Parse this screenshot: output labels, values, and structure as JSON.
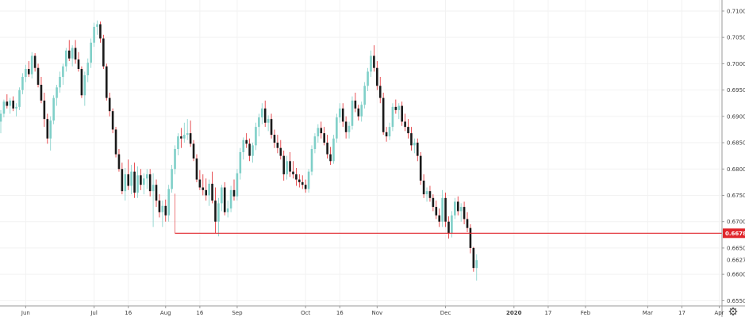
{
  "chart_data": {
    "type": "candlestick",
    "y_axis": {
      "labels": [
        "0.71000",
        "0.70500",
        "0.70000",
        "0.69500",
        "0.69000",
        "0.68500",
        "0.68000",
        "0.67500",
        "0.67000",
        "0.66500",
        "0.66000",
        "0.65500"
      ],
      "range": [
        0.654,
        0.7118
      ],
      "position": "right"
    },
    "x_axis": {
      "labels": [
        {
          "text": "Jun",
          "bar": 8,
          "year": false
        },
        {
          "text": "Jul",
          "bar": 30,
          "year": false
        },
        {
          "text": "16",
          "bar": 41,
          "year": false
        },
        {
          "text": "Aug",
          "bar": 53,
          "year": false
        },
        {
          "text": "16",
          "bar": 64,
          "year": false
        },
        {
          "text": "Sep",
          "bar": 76,
          "year": false
        },
        {
          "text": "Oct",
          "bar": 98,
          "year": false
        },
        {
          "text": "16",
          "bar": 109,
          "year": false
        },
        {
          "text": "Nov",
          "bar": 121,
          "year": false
        },
        {
          "text": "Dec",
          "bar": 143,
          "year": false
        },
        {
          "text": "2020",
          "bar": 165,
          "year": true
        },
        {
          "text": "17",
          "bar": 176,
          "year": false
        },
        {
          "text": "Feb",
          "bar": 188,
          "year": false
        },
        {
          "text": "Mar",
          "bar": 208,
          "year": false
        },
        {
          "text": "17",
          "bar": 219,
          "year": false
        },
        {
          "text": "Apr",
          "bar": 231,
          "year": false
        }
      ]
    },
    "horizontal_line": {
      "value": 0.6678,
      "start_bar": 56,
      "color": "#e0262b"
    },
    "current_price": {
      "value": 0.6627,
      "color": "#4a4a4a"
    },
    "price_tag": {
      "label": "0.66780",
      "color": "#e0262b"
    },
    "colors": {
      "up_candle": "#7fcfc8",
      "down_candle": "#1a1a1a",
      "down_wick": "#e0262b",
      "up_wick": "#7fcfc8",
      "grid": "#f2f2f2",
      "axis_line": "#999999",
      "settings_icon": "#444444"
    },
    "candles": [
      [
        0.689,
        0.6912,
        0.6868,
        0.6905
      ],
      [
        0.6905,
        0.6932,
        0.6898,
        0.6928
      ],
      [
        0.6928,
        0.6942,
        0.6915,
        0.692
      ],
      [
        0.692,
        0.6935,
        0.6905,
        0.693
      ],
      [
        0.693,
        0.6938,
        0.691,
        0.6915
      ],
      [
        0.6915,
        0.6925,
        0.69,
        0.6918
      ],
      [
        0.6918,
        0.6955,
        0.6912,
        0.695
      ],
      [
        0.695,
        0.6982,
        0.6942,
        0.6975
      ],
      [
        0.6975,
        0.6998,
        0.6965,
        0.699
      ],
      [
        0.699,
        0.7005,
        0.6975,
        0.698
      ],
      [
        0.698,
        0.7022,
        0.6972,
        0.7015
      ],
      [
        0.7015,
        0.702,
        0.6985,
        0.6992
      ],
      [
        0.6992,
        0.7,
        0.6955,
        0.696
      ],
      [
        0.696,
        0.6975,
        0.6925,
        0.693
      ],
      [
        0.693,
        0.6945,
        0.688,
        0.6895
      ],
      [
        0.6895,
        0.6905,
        0.6848,
        0.6858
      ],
      [
        0.6858,
        0.69,
        0.6835,
        0.6892
      ],
      [
        0.6892,
        0.694,
        0.6885,
        0.6935
      ],
      [
        0.6935,
        0.696,
        0.692,
        0.6955
      ],
      [
        0.6955,
        0.6985,
        0.6945,
        0.6975
      ],
      [
        0.6975,
        0.7,
        0.696,
        0.6995
      ],
      [
        0.6995,
        0.703,
        0.6985,
        0.7025
      ],
      [
        0.7025,
        0.7045,
        0.7005,
        0.701
      ],
      [
        0.701,
        0.7035,
        0.6995,
        0.703
      ],
      [
        0.703,
        0.7045,
        0.7,
        0.7008
      ],
      [
        0.7008,
        0.7022,
        0.6985,
        0.699
      ],
      [
        0.699,
        0.6995,
        0.6935,
        0.694
      ],
      [
        0.694,
        0.6985,
        0.692,
        0.6978
      ],
      [
        0.6978,
        0.701,
        0.6965,
        0.7002
      ],
      [
        0.7002,
        0.7048,
        0.6992,
        0.704
      ],
      [
        0.704,
        0.7078,
        0.7032,
        0.707
      ],
      [
        0.707,
        0.7082,
        0.7055,
        0.7075
      ],
      [
        0.7075,
        0.708,
        0.704,
        0.7048
      ],
      [
        0.7048,
        0.7055,
        0.699,
        0.6995
      ],
      [
        0.6995,
        0.7,
        0.693,
        0.6935
      ],
      [
        0.6935,
        0.6945,
        0.69,
        0.691
      ],
      [
        0.691,
        0.6915,
        0.6868,
        0.6875
      ],
      [
        0.6875,
        0.688,
        0.6822,
        0.6828
      ],
      [
        0.6828,
        0.6838,
        0.6795,
        0.68
      ],
      [
        0.68,
        0.6812,
        0.6752,
        0.6758
      ],
      [
        0.6758,
        0.6802,
        0.674,
        0.679
      ],
      [
        0.679,
        0.6818,
        0.676,
        0.6768
      ],
      [
        0.6768,
        0.6808,
        0.6752,
        0.6795
      ],
      [
        0.6795,
        0.6812,
        0.6745,
        0.6755
      ],
      [
        0.6755,
        0.6805,
        0.6745,
        0.6788
      ],
      [
        0.6788,
        0.68,
        0.676,
        0.677
      ],
      [
        0.677,
        0.6792,
        0.6752,
        0.6782
      ],
      [
        0.6782,
        0.68,
        0.6762,
        0.679
      ],
      [
        0.679,
        0.68,
        0.6748,
        0.6758
      ],
      [
        0.6758,
        0.6792,
        0.669,
        0.677
      ],
      [
        0.677,
        0.678,
        0.6728,
        0.674
      ],
      [
        0.674,
        0.6752,
        0.6708,
        0.6718
      ],
      [
        0.6718,
        0.674,
        0.669,
        0.673
      ],
      [
        0.673,
        0.6742,
        0.67,
        0.6712
      ],
      [
        0.6712,
        0.677,
        0.67,
        0.6762
      ],
      [
        0.6762,
        0.6808,
        0.6755,
        0.68
      ],
      [
        0.68,
        0.6845,
        0.679,
        0.6838
      ],
      [
        0.6838,
        0.6868,
        0.6826,
        0.6862
      ],
      [
        0.6862,
        0.6878,
        0.684,
        0.6858
      ],
      [
        0.6858,
        0.6888,
        0.685,
        0.6865
      ],
      [
        0.6865,
        0.6895,
        0.6855,
        0.6868
      ],
      [
        0.6868,
        0.6892,
        0.6842,
        0.6848
      ],
      [
        0.6848,
        0.6855,
        0.6815,
        0.682
      ],
      [
        0.682,
        0.6828,
        0.6775,
        0.678
      ],
      [
        0.678,
        0.6798,
        0.676,
        0.6765
      ],
      [
        0.6765,
        0.679,
        0.675,
        0.676
      ],
      [
        0.676,
        0.6782,
        0.674,
        0.675
      ],
      [
        0.675,
        0.678,
        0.673,
        0.6772
      ],
      [
        0.6772,
        0.6795,
        0.6735,
        0.674
      ],
      [
        0.674,
        0.6765,
        0.6678,
        0.67
      ],
      [
        0.67,
        0.6745,
        0.6672,
        0.6735
      ],
      [
        0.6735,
        0.677,
        0.672,
        0.6765
      ],
      [
        0.6765,
        0.6775,
        0.6712,
        0.6718
      ],
      [
        0.6718,
        0.674,
        0.6708,
        0.6725
      ],
      [
        0.6725,
        0.6768,
        0.6718,
        0.676
      ],
      [
        0.676,
        0.678,
        0.674,
        0.6748
      ],
      [
        0.6748,
        0.68,
        0.674,
        0.6792
      ],
      [
        0.6792,
        0.684,
        0.678,
        0.6832
      ],
      [
        0.6832,
        0.686,
        0.6818,
        0.6855
      ],
      [
        0.6855,
        0.6868,
        0.684,
        0.6848
      ],
      [
        0.6848,
        0.6858,
        0.6815,
        0.6825
      ],
      [
        0.6825,
        0.685,
        0.6812,
        0.6845
      ],
      [
        0.6845,
        0.6888,
        0.6836,
        0.688
      ],
      [
        0.688,
        0.6905,
        0.6862,
        0.6898
      ],
      [
        0.6898,
        0.6925,
        0.6885,
        0.6915
      ],
      [
        0.6915,
        0.693,
        0.688,
        0.6888
      ],
      [
        0.6888,
        0.6902,
        0.6872,
        0.6895
      ],
      [
        0.6895,
        0.6905,
        0.6858,
        0.6865
      ],
      [
        0.6865,
        0.6875,
        0.684,
        0.685
      ],
      [
        0.685,
        0.6865,
        0.683,
        0.684
      ],
      [
        0.684,
        0.6855,
        0.6818,
        0.6825
      ],
      [
        0.6825,
        0.6835,
        0.6778,
        0.679
      ],
      [
        0.679,
        0.6825,
        0.678,
        0.6815
      ],
      [
        0.6815,
        0.6832,
        0.6785,
        0.6795
      ],
      [
        0.6795,
        0.6815,
        0.6782,
        0.679
      ],
      [
        0.679,
        0.6802,
        0.6768,
        0.678
      ],
      [
        0.678,
        0.679,
        0.6765,
        0.6775
      ],
      [
        0.6775,
        0.6788,
        0.6762,
        0.677
      ],
      [
        0.677,
        0.678,
        0.6755,
        0.6762
      ],
      [
        0.6762,
        0.68,
        0.6755,
        0.6795
      ],
      [
        0.6795,
        0.6845,
        0.6788,
        0.6838
      ],
      [
        0.6838,
        0.6868,
        0.683,
        0.6862
      ],
      [
        0.6862,
        0.6885,
        0.685,
        0.6878
      ],
      [
        0.6878,
        0.689,
        0.6858,
        0.6868
      ],
      [
        0.6868,
        0.688,
        0.6845,
        0.685
      ],
      [
        0.685,
        0.6865,
        0.682,
        0.6828
      ],
      [
        0.6828,
        0.6842,
        0.6808,
        0.6815
      ],
      [
        0.6815,
        0.6865,
        0.681,
        0.6858
      ],
      [
        0.6858,
        0.6905,
        0.685,
        0.6898
      ],
      [
        0.6898,
        0.6925,
        0.6888,
        0.6915
      ],
      [
        0.6915,
        0.6925,
        0.688,
        0.689
      ],
      [
        0.689,
        0.69,
        0.6858,
        0.687
      ],
      [
        0.687,
        0.689,
        0.6858,
        0.6882
      ],
      [
        0.6882,
        0.6938,
        0.6875,
        0.693
      ],
      [
        0.693,
        0.6945,
        0.6908,
        0.6915
      ],
      [
        0.6915,
        0.6922,
        0.6892,
        0.69
      ],
      [
        0.69,
        0.6928,
        0.689,
        0.6922
      ],
      [
        0.6922,
        0.6965,
        0.6915,
        0.6958
      ],
      [
        0.6958,
        0.6992,
        0.6948,
        0.6985
      ],
      [
        0.6985,
        0.7025,
        0.6975,
        0.7015
      ],
      [
        0.7015,
        0.7035,
        0.6985,
        0.6992
      ],
      [
        0.6992,
        0.7005,
        0.695,
        0.6958
      ],
      [
        0.6958,
        0.6975,
        0.6925,
        0.6935
      ],
      [
        0.6935,
        0.6945,
        0.6865,
        0.687
      ],
      [
        0.687,
        0.688,
        0.6852,
        0.6862
      ],
      [
        0.6862,
        0.6888,
        0.6855,
        0.688
      ],
      [
        0.688,
        0.6925,
        0.6872,
        0.6918
      ],
      [
        0.6918,
        0.6932,
        0.6905,
        0.6912
      ],
      [
        0.6912,
        0.6925,
        0.6895,
        0.692
      ],
      [
        0.692,
        0.6928,
        0.6882,
        0.689
      ],
      [
        0.689,
        0.6905,
        0.6872,
        0.688
      ],
      [
        0.688,
        0.6895,
        0.6858,
        0.6868
      ],
      [
        0.6868,
        0.688,
        0.6835,
        0.6845
      ],
      [
        0.6845,
        0.6858,
        0.683,
        0.685
      ],
      [
        0.685,
        0.6858,
        0.6815,
        0.6825
      ],
      [
        0.6825,
        0.6832,
        0.677,
        0.6778
      ],
      [
        0.6778,
        0.679,
        0.6745,
        0.6752
      ],
      [
        0.6752,
        0.6765,
        0.6738,
        0.6758
      ],
      [
        0.6758,
        0.6768,
        0.6738,
        0.6745
      ],
      [
        0.6745,
        0.6752,
        0.672,
        0.6728
      ],
      [
        0.6728,
        0.674,
        0.6705,
        0.6712
      ],
      [
        0.6712,
        0.6725,
        0.669,
        0.67
      ],
      [
        0.67,
        0.676,
        0.669,
        0.6745
      ],
      [
        0.6745,
        0.6755,
        0.669,
        0.67
      ],
      [
        0.67,
        0.671,
        0.6668,
        0.6678
      ],
      [
        0.6678,
        0.672,
        0.667,
        0.6712
      ],
      [
        0.6712,
        0.6745,
        0.6705,
        0.6738
      ],
      [
        0.6738,
        0.6748,
        0.6712,
        0.672
      ],
      [
        0.672,
        0.6735,
        0.67,
        0.6728
      ],
      [
        0.6728,
        0.6738,
        0.6695,
        0.6705
      ],
      [
        0.6705,
        0.6718,
        0.668,
        0.6688
      ],
      [
        0.6688,
        0.6695,
        0.664,
        0.665
      ],
      [
        0.665,
        0.6652,
        0.6605,
        0.6612
      ],
      [
        0.6612,
        0.6638,
        0.6588,
        0.6627
      ]
    ],
    "candle_bar_offset": 0
  }
}
